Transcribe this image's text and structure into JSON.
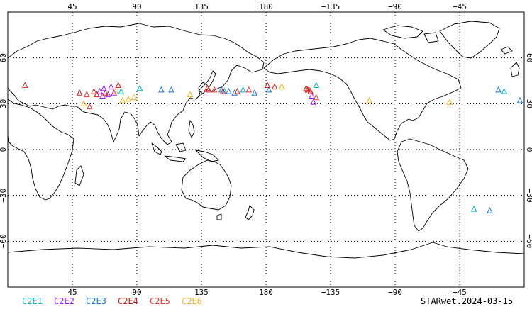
{
  "map": {
    "lon_ticks_top": [
      "45",
      "90",
      "135",
      "180",
      "−135",
      "−90",
      "−45"
    ],
    "lon_ticks_bottom": [
      "45",
      "90",
      "135",
      "180",
      "−135",
      "−90",
      "−45"
    ],
    "lat_ticks": [
      "60",
      "30",
      "0",
      "−30",
      "−60"
    ],
    "lon_values": [
      45,
      90,
      135,
      180,
      225,
      270,
      315
    ],
    "lat_values": [
      60,
      30,
      0,
      -30,
      -60
    ],
    "grid": "dotted",
    "center_longitude": 180,
    "lon_range": [
      0,
      360
    ],
    "lat_range": [
      -90,
      90
    ]
  },
  "legend": [
    {
      "label": "C2E1",
      "color": "#00B4C8"
    },
    {
      "label": "C2E2",
      "color": "#A020F0"
    },
    {
      "label": "C2E3",
      "color": "#1E78DC"
    },
    {
      "label": "C2E4",
      "color": "#C81E1E"
    },
    {
      "label": "C2E5",
      "color": "#F03232"
    },
    {
      "label": "C2E6",
      "color": "#F0B428"
    }
  ],
  "product_label": "STARwet.2024-03-15",
  "chart_data": {
    "type": "scatter",
    "marker": "triangle",
    "series": [
      {
        "name": "C2E1",
        "points": [
          [
            79,
            38
          ],
          [
            92,
            40
          ],
          [
            151,
            38
          ],
          [
            164,
            39
          ],
          [
            215,
            42
          ],
          [
            346,
            38
          ],
          [
            325,
            -39
          ]
        ]
      },
      {
        "name": "C2E2",
        "points": [
          [
            64,
            38
          ],
          [
            67,
            40
          ],
          [
            70,
            36
          ],
          [
            72,
            41
          ],
          [
            74,
            37
          ],
          [
            66,
            35
          ],
          [
            212,
            35
          ],
          [
            213,
            31
          ]
        ]
      },
      {
        "name": "C2E3",
        "points": [
          [
            12,
            42
          ],
          [
            107,
            39
          ],
          [
            114,
            39
          ],
          [
            149,
            39
          ],
          [
            154,
            38
          ],
          [
            158,
            37
          ],
          [
            172,
            37
          ],
          [
            182,
            39
          ],
          [
            342,
            39
          ],
          [
            336,
            -40
          ],
          [
            357,
            32
          ]
        ]
      },
      {
        "name": "C2E4",
        "points": [
          [
            50,
            37
          ],
          [
            60,
            38
          ],
          [
            62,
            36
          ],
          [
            68,
            37
          ],
          [
            77,
            42
          ],
          [
            140,
            39
          ],
          [
            150,
            38
          ],
          [
            160,
            38
          ],
          [
            181,
            42
          ],
          [
            186,
            41
          ],
          [
            208,
            40
          ],
          [
            209,
            39
          ],
          [
            211,
            38
          ]
        ]
      },
      {
        "name": "C2E5",
        "points": [
          [
            12,
            42
          ],
          [
            55,
            36
          ],
          [
            57,
            28
          ],
          [
            139,
            40
          ],
          [
            144,
            39
          ],
          [
            168,
            39
          ],
          [
            210,
            39
          ],
          [
            215,
            34
          ]
        ]
      },
      {
        "name": "C2E6",
        "points": [
          [
            53,
            30
          ],
          [
            75,
            38
          ],
          [
            80,
            32
          ],
          [
            84,
            33
          ],
          [
            88,
            34
          ],
          [
            127,
            36
          ],
          [
            191,
            41
          ],
          [
            252,
            32
          ],
          [
            308,
            31
          ]
        ]
      }
    ]
  }
}
